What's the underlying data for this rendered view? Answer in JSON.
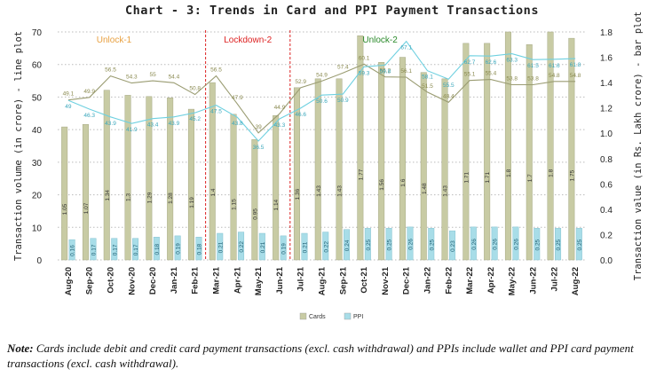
{
  "title": "Chart - 3: Trends in Card and PPI Payment Transactions",
  "footnote": {
    "prefix": "Note:",
    "text": " Cards include debit and credit card payment transactions (excl. cash withdrawal) and PPIs include wallet and PPI card payment transactions (excl. cash withdrawal)."
  },
  "chart_data": {
    "type": "bar+line",
    "categories": [
      "Aug-20",
      "Sep-20",
      "Oct-20",
      "Nov-20",
      "Dec-20",
      "Jan-21",
      "Feb-21",
      "Mar-21",
      "Apr-21",
      "May-21",
      "Jun-21",
      "Jul-21",
      "Aug-21",
      "Sep-21",
      "Oct-21",
      "Nov-21",
      "Dec-21",
      "Jan-22",
      "Feb-22",
      "Mar-22",
      "Apr-22",
      "May-22",
      "Jun-22",
      "Jul-22",
      "Aug-22"
    ],
    "ylabel_left": "Transaction volume (in crore) - line plot",
    "ylabel_right": "Transaction value (in Rs. Lakh crore) - bar plot",
    "ylim_left": [
      0,
      70
    ],
    "yticks_left": [
      "0",
      "10",
      "20",
      "30",
      "40",
      "50",
      "60",
      "70"
    ],
    "ylim_right": [
      0,
      1.8
    ],
    "yticks_right": [
      "0.0",
      "0.2",
      "0.4",
      "0.6",
      "0.8",
      "1.0",
      "1.2",
      "1.4",
      "1.6",
      "1.8"
    ],
    "grid": "horizontal dotted",
    "legend_position": "bottom",
    "bar_series": [
      {
        "name": "Cards",
        "color": "#c8cba4",
        "values": [
          1.05,
          1.07,
          1.34,
          1.3,
          1.29,
          1.28,
          1.19,
          1.4,
          1.15,
          0.95,
          1.14,
          1.36,
          1.43,
          1.43,
          1.77,
          1.56,
          1.6,
          1.48,
          1.43,
          1.71,
          1.71,
          1.8,
          1.7,
          1.8,
          1.75
        ],
        "labels": [
          "1.05",
          "1.07",
          "1.34",
          "1.3",
          "1.29",
          "1.28",
          "1.19",
          "1.4",
          "1.15",
          "0.95",
          "1.14",
          "1.36",
          "1.43",
          "1.43",
          "1.77",
          "1.56",
          "1.6",
          "1.48",
          "1.43",
          "1.71",
          "1.71",
          "1.8",
          "1.7",
          "1.8",
          "1.75"
        ]
      },
      {
        "name": "PPI",
        "color": "#a8dde8",
        "values": [
          0.16,
          0.17,
          0.17,
          0.17,
          0.18,
          0.19,
          0.18,
          0.21,
          0.22,
          0.21,
          0.19,
          0.21,
          0.22,
          0.24,
          0.25,
          0.25,
          0.26,
          0.25,
          0.23,
          0.26,
          0.26,
          0.26,
          0.25,
          0.25,
          0.25
        ],
        "labels": [
          "0.16",
          "0.17",
          "0.17",
          "0.17",
          "0.18",
          "0.19",
          "0.18",
          "0.21",
          "0.22",
          "0.21",
          "0.19",
          "0.21",
          "0.22",
          "0.24",
          "0.25",
          "0.25",
          "0.26",
          "0.25",
          "0.23",
          "0.26",
          "0.26",
          "0.26",
          "0.25",
          "0.25",
          "0.25"
        ]
      }
    ],
    "line_series": [
      {
        "name": "Cards",
        "color": "#9a9c72",
        "label_color": "#8a8a50",
        "values": [
          49.1,
          49.9,
          56.5,
          54.3,
          55,
          54.4,
          50.8,
          56.5,
          47.9,
          39,
          44.9,
          52.9,
          54.9,
          57.4,
          60.1,
          56.2,
          56.1,
          51.5,
          48.4,
          55.1,
          55.4,
          53.8,
          53.8,
          54.8,
          54.8
        ],
        "labels": [
          "49.1",
          "49.9",
          "56.5",
          "54.3",
          "55",
          "54.4",
          "50.8",
          "56.5",
          "47.9",
          "39",
          "44.9",
          "52.9",
          "54.9",
          "57.4",
          "60.1",
          "56.2",
          "56.1",
          "51.5",
          "48.4",
          "55.1",
          "55.4",
          "53.8",
          "53.8",
          "54.8",
          "54.8"
        ]
      },
      {
        "name": "PPI",
        "color": "#6ed0e0",
        "label_color": "#3aa7bc",
        "values": [
          49,
          46.3,
          43.9,
          41.9,
          43.4,
          43.9,
          45.2,
          47.5,
          43.8,
          36.5,
          43.3,
          46.6,
          50.6,
          50.9,
          59.3,
          59.8,
          67.1,
          58.1,
          55.5,
          62.7,
          62.6,
          63.3,
          61.5,
          61.6,
          61.8
        ],
        "labels": [
          "49",
          "46.3",
          "43.9",
          "41.9",
          "43.4",
          "43.9",
          "45.2",
          "47.5",
          "43.8",
          "36.5",
          "43.3",
          "46.6",
          "50.6",
          "50.9",
          "59.3",
          "59.8",
          "67.1",
          "58.1",
          "55.5",
          "62.7",
          "62.6",
          "63.3",
          "61.5",
          "61.6",
          "61.8"
        ]
      }
    ],
    "annotations": [
      {
        "text": "Unlock-1",
        "color": "#e8a040"
      },
      {
        "text": "Lockdown-2",
        "color": "#dd2222"
      },
      {
        "text": "Unlock-2",
        "color": "#2a8a2a"
      }
    ],
    "vertical_markers": [
      "between Feb-21 and Mar-21",
      "between Jun-21 and Jul-21"
    ]
  }
}
